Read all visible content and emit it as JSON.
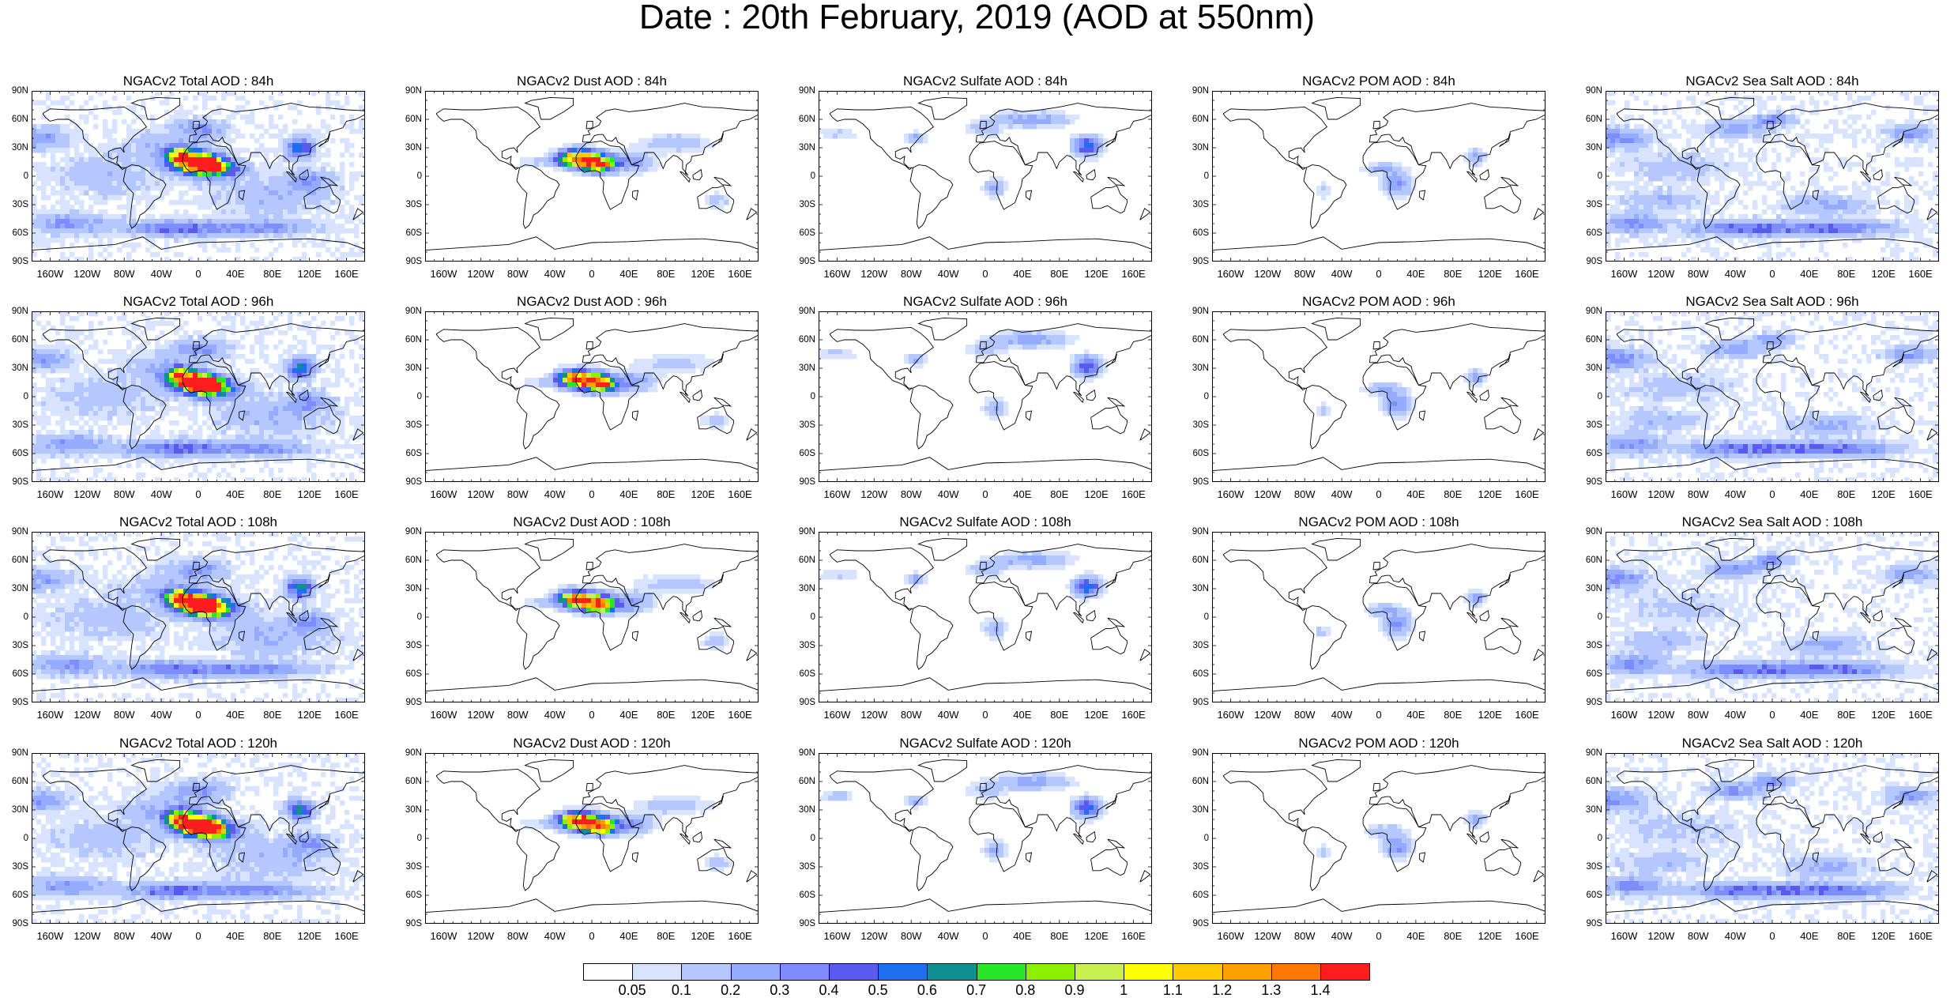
{
  "figure": {
    "title": "Date : 20th February, 2019 (AOD at 550nm)"
  },
  "panels": [
    {
      "title": "NGACv2 Total AOD : 84h",
      "species": "total"
    },
    {
      "title": "NGACv2 Dust AOD : 84h",
      "species": "dust"
    },
    {
      "title": "NGACv2 Sulfate AOD : 84h",
      "species": "sulfate"
    },
    {
      "title": "NGACv2 POM AOD : 84h",
      "species": "pom"
    },
    {
      "title": "NGACv2 Sea Salt AOD : 84h",
      "species": "seasalt"
    },
    {
      "title": "NGACv2 Total AOD : 96h",
      "species": "total"
    },
    {
      "title": "NGACv2 Dust AOD : 96h",
      "species": "dust"
    },
    {
      "title": "NGACv2 Sulfate AOD : 96h",
      "species": "sulfate"
    },
    {
      "title": "NGACv2 POM AOD : 96h",
      "species": "pom"
    },
    {
      "title": "NGACv2 Sea Salt AOD : 96h",
      "species": "seasalt"
    },
    {
      "title": "NGACv2 Total AOD : 108h",
      "species": "total"
    },
    {
      "title": "NGACv2 Dust AOD : 108h",
      "species": "dust"
    },
    {
      "title": "NGACv2 Sulfate AOD : 108h",
      "species": "sulfate"
    },
    {
      "title": "NGACv2 POM AOD : 108h",
      "species": "pom"
    },
    {
      "title": "NGACv2 Sea Salt AOD : 108h",
      "species": "seasalt"
    },
    {
      "title": "NGACv2 Total AOD : 120h",
      "species": "total"
    },
    {
      "title": "NGACv2 Dust AOD : 120h",
      "species": "dust"
    },
    {
      "title": "NGACv2 Sulfate AOD : 120h",
      "species": "sulfate"
    },
    {
      "title": "NGACv2 POM AOD : 120h",
      "species": "pom"
    },
    {
      "title": "NGACv2 Sea Salt  AOD : 120h",
      "species": "seasalt"
    }
  ],
  "axes": {
    "lat_labels": [
      "90N",
      "60N",
      "30N",
      "0",
      "30S",
      "60S",
      "90S"
    ],
    "lon_labels": [
      "160W",
      "120W",
      "80W",
      "40W",
      "0",
      "40E",
      "80E",
      "120E",
      "160E"
    ]
  },
  "colorbar": {
    "labels": [
      "0.05",
      "0.1",
      "0.2",
      "0.3",
      "0.4",
      "0.5",
      "0.6",
      "0.7",
      "0.8",
      "0.9",
      "1",
      "1.1",
      "1.2",
      "1.3",
      "1.4"
    ],
    "colors": [
      "#ffffff",
      "#d8e4ff",
      "#b4c8ff",
      "#94abff",
      "#7d8cff",
      "#5a5af0",
      "#1e6ef0",
      "#109090",
      "#28e628",
      "#8cf000",
      "#c8f050",
      "#ffff00",
      "#ffc800",
      "#ffa000",
      "#ff7800",
      "#ff1e1e"
    ]
  },
  "map_style": {
    "coast_color": "#000000",
    "background": "#ffffff"
  }
}
